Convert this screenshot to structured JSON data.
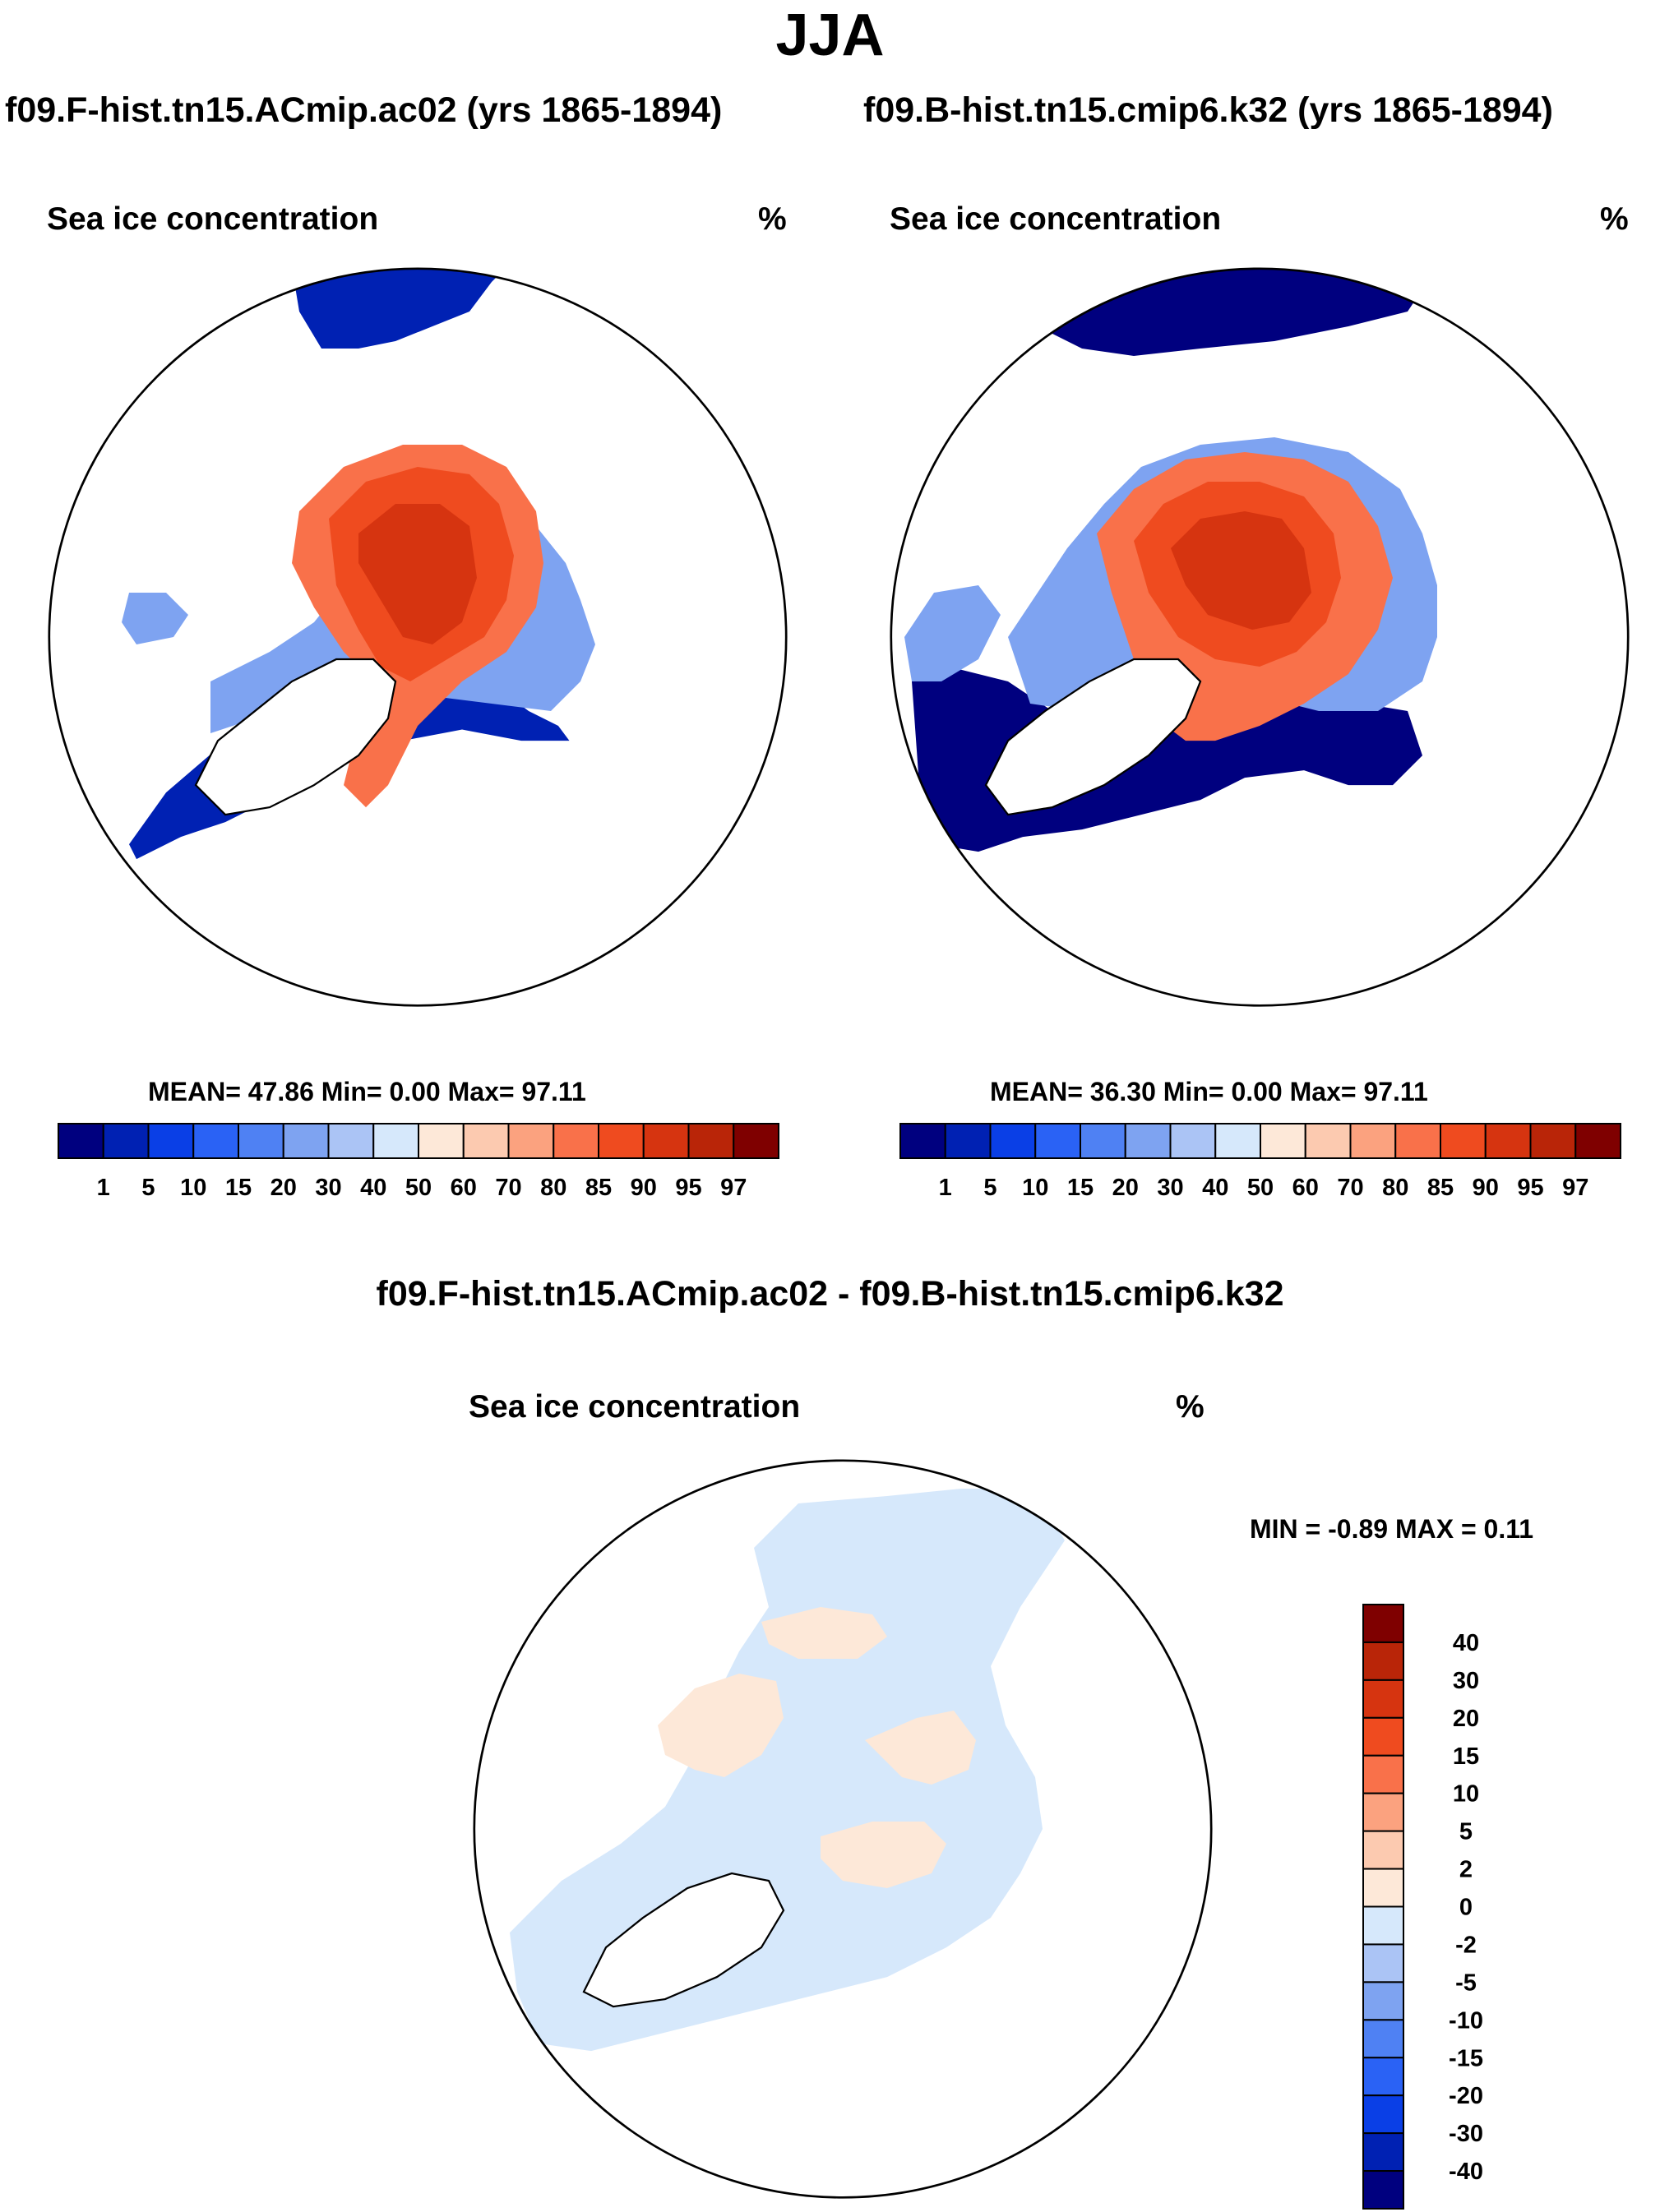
{
  "season": "JJA",
  "chart_data": [
    {
      "type": "heatmap",
      "projection": "north-polar-stereographic",
      "case_title": "f09.F-hist.tn15.ACmip.ac02 (yrs 1865-1894)",
      "variable": "Sea ice concentration",
      "units": "%",
      "stats": {
        "mean": "47.86",
        "min": "0.00",
        "max": "97.11"
      },
      "stats_text": "MEAN=  47.86  Min=   0.00  Max=  97.11",
      "colorbar": {
        "orientation": "horizontal",
        "levels": [
          "1",
          "5",
          "10",
          "15",
          "20",
          "30",
          "40",
          "50",
          "60",
          "70",
          "80",
          "85",
          "90",
          "95",
          "97"
        ],
        "colors": [
          "#00007f",
          "#0021b3",
          "#0a3fe6",
          "#2a62f5",
          "#4f81f3",
          "#7ea3f1",
          "#abc4f5",
          "#d6e8fb",
          "#fde8d8",
          "#fccab0",
          "#fba27f",
          "#f9714a",
          "#ef4b1f",
          "#d63410",
          "#b92508",
          "#7f0000"
        ]
      }
    },
    {
      "type": "heatmap",
      "projection": "north-polar-stereographic",
      "case_title": "f09.B-hist.tn15.cmip6.k32 (yrs 1865-1894)",
      "variable": "Sea ice concentration",
      "units": "%",
      "stats": {
        "mean": "36.30",
        "min": "0.00",
        "max": "97.11"
      },
      "stats_text": "MEAN=  36.30  Min=   0.00  Max=  97.11",
      "colorbar": {
        "orientation": "horizontal",
        "levels": [
          "1",
          "5",
          "10",
          "15",
          "20",
          "30",
          "40",
          "50",
          "60",
          "70",
          "80",
          "85",
          "90",
          "95",
          "97"
        ],
        "colors": [
          "#00007f",
          "#0021b3",
          "#0a3fe6",
          "#2a62f5",
          "#4f81f3",
          "#7ea3f1",
          "#abc4f5",
          "#d6e8fb",
          "#fde8d8",
          "#fccab0",
          "#fba27f",
          "#f9714a",
          "#ef4b1f",
          "#d63410",
          "#b92508",
          "#7f0000"
        ]
      }
    },
    {
      "type": "heatmap",
      "projection": "north-polar-stereographic",
      "case_title": "f09.F-hist.tn15.ACmip.ac02 - f09.B-hist.tn15.cmip6.k32",
      "variable": "Sea ice concentration",
      "units": "%",
      "stats": {
        "min": "-0.89",
        "max": "0.11"
      },
      "stats_text": "MIN =  -0.89 MAX =   0.11",
      "colorbar": {
        "orientation": "vertical",
        "levels_top_to_bottom": [
          "40",
          "30",
          "20",
          "15",
          "10",
          "5",
          "2",
          "0",
          "-2",
          "-5",
          "-10",
          "-15",
          "-20",
          "-30",
          "-40"
        ],
        "colors_top_to_bottom": [
          "#7f0000",
          "#b92508",
          "#d63410",
          "#ef4b1f",
          "#f9714a",
          "#fba27f",
          "#fccab0",
          "#fde8d8",
          "#d6e8fb",
          "#abc4f5",
          "#7ea3f1",
          "#4f81f3",
          "#2a62f5",
          "#0a3fe6",
          "#0021b3",
          "#00007f"
        ]
      }
    }
  ]
}
